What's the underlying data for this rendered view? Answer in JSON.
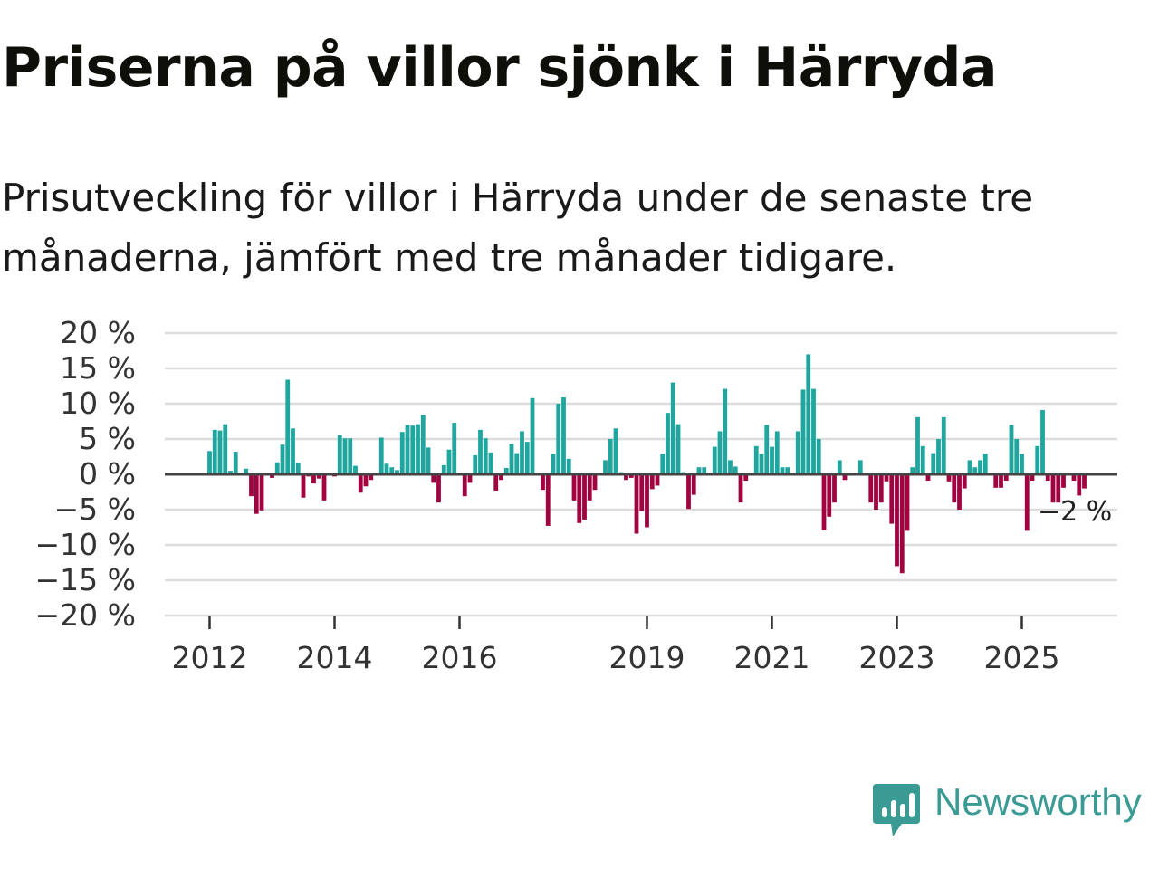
{
  "header": {
    "title": "Priserna på villor sjönk i Härryda",
    "subtitle": "Prisutveckling för villor i Härryda under de senaste tre månaderna, jämfört med tre månader tidigare."
  },
  "brand": {
    "name": "Newsworthy"
  },
  "colors": {
    "positive": "#1fa69f",
    "negative": "#a0033f",
    "grid": "#dddddd",
    "zero": "#444444"
  },
  "chart_data": {
    "type": "bar",
    "title": "Priserna på villor sjönk i Härryda",
    "xlabel": "",
    "ylabel": "",
    "ylim": [
      -20,
      20
    ],
    "y_ticks": [
      20,
      15,
      10,
      5,
      0,
      -5,
      -10,
      -15,
      -20
    ],
    "y_tick_labels": [
      "20 %",
      "15 %",
      "10 %",
      "5 %",
      "0 %",
      "−5 %",
      "−10 %",
      "−15 %",
      "−20 %"
    ],
    "x_ticks": [
      "2012",
      "2014",
      "2016",
      "2019",
      "2021",
      "2023",
      "2025"
    ],
    "start": "2012-01",
    "frequency": "monthly",
    "last_value_label": "−2 %",
    "values": [
      3.3,
      6.3,
      6.2,
      7.1,
      0.5,
      3.2,
      0.2,
      0.8,
      -3.1,
      -5.6,
      -5.1,
      0.1,
      -0.5,
      1.7,
      4.2,
      13.4,
      6.5,
      1.6,
      -3.3,
      -0.3,
      -1.3,
      -0.6,
      -3.7,
      0.1,
      -0.3,
      5.6,
      5.1,
      5.1,
      1.2,
      -2.6,
      -1.7,
      -0.8,
      0.2,
      5.2,
      1.5,
      1.0,
      0.6,
      6.0,
      7.0,
      6.9,
      7.1,
      8.4,
      3.8,
      -1.2,
      -4.0,
      1.3,
      3.5,
      7.3,
      0.2,
      -3.1,
      -1.2,
      2.7,
      6.3,
      5.1,
      3.1,
      -2.3,
      -0.8,
      0.9,
      4.3,
      3.0,
      6.1,
      4.6,
      10.8,
      0.1,
      -2.2,
      -7.3,
      2.9,
      10.0,
      10.9,
      2.2,
      -3.7,
      -6.9,
      -6.4,
      -3.7,
      -2.2,
      0.2,
      2.0,
      5.0,
      6.5,
      0.3,
      -0.8,
      -0.5,
      -8.4,
      -5.2,
      -7.5,
      -2.1,
      -1.6,
      2.9,
      8.7,
      13.0,
      7.1,
      0.3,
      -4.9,
      -2.9,
      1.0,
      1.0,
      0.2,
      3.9,
      6.1,
      12.1,
      2.0,
      1.1,
      -4.0,
      -0.9,
      0.1,
      4.0,
      2.9,
      7.0,
      3.9,
      6.1,
      1.0,
      1.0,
      0.1,
      6.1,
      12.0,
      17.0,
      12.1,
      5.0,
      -7.9,
      -6.0,
      -4.0,
      2.0,
      -0.8,
      0.1,
      0.2,
      2.0,
      0.2,
      -4.0,
      -5.0,
      -4.0,
      -1.0,
      -7.0,
      -13.0,
      -14.0,
      -8.0,
      1.0,
      8.1,
      4.0,
      -0.9,
      3.0,
      5.0,
      8.1,
      -1.0,
      -4.0,
      -5.0,
      -2.0,
      2.0,
      1.0,
      2.0,
      2.9,
      0.1,
      -1.9,
      -1.9,
      -0.9,
      7.0,
      5.0,
      2.9,
      -8.0,
      -0.9,
      4.0,
      9.1,
      -0.9,
      -4.0,
      -4.0,
      -1.9,
      0.1,
      -0.9,
      -3.0,
      -2.0
    ]
  }
}
